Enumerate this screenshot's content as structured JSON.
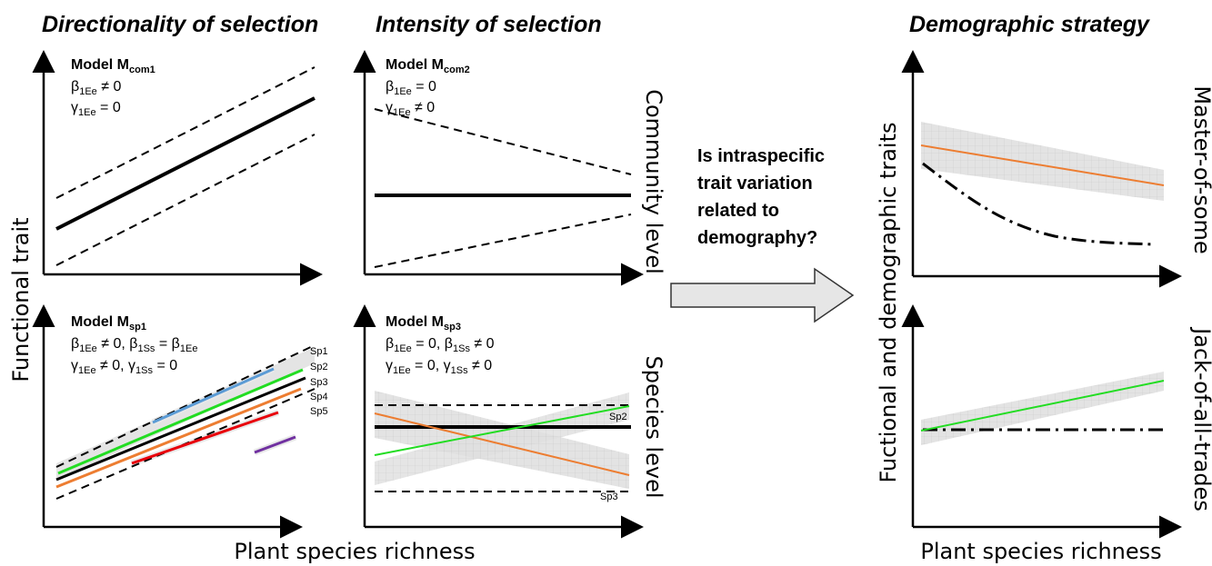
{
  "headings": {
    "directionality": "Directionality of selection",
    "intensity": "Intensity of selection",
    "demographic": "Demographic strategy"
  },
  "axes": {
    "y_left": "Functional trait",
    "x_left": "Plant species richness",
    "y_right": "Fuctional and demographic traits",
    "x_right": "Plant species richness"
  },
  "row_labels": {
    "community": "Community level",
    "species": "Species level",
    "master": "Master-of-some",
    "jack": "Jack-of-all-trades"
  },
  "question": [
    "Is intraspecific",
    "trait variation",
    "related to",
    "demography?"
  ],
  "panels": {
    "mcom1": {
      "model": "Model M",
      "sub": "com1",
      "lines": [
        [
          "β",
          "1Ee",
          " ≠ 0"
        ],
        [
          "γ",
          "1Ee",
          " = 0"
        ]
      ]
    },
    "mcom2": {
      "model": "Model M",
      "sub": "com2",
      "lines": [
        [
          "β",
          "1Ee",
          " = 0"
        ],
        [
          "γ",
          "1Ee",
          " ≠ 0"
        ]
      ]
    },
    "msp1": {
      "model": "Model M",
      "sub": "sp1",
      "line1": [
        "β",
        "1Ee",
        " ≠ 0,  β",
        "1Ss",
        " = β",
        "1Ee",
        ""
      ],
      "line2": [
        "γ",
        "1Ee",
        " ≠ 0,  γ",
        "1Ss",
        " = 0"
      ]
    },
    "msp3": {
      "model": "Model M",
      "sub": "sp3",
      "line1": [
        "β",
        "1Ee",
        " = 0,  β",
        "1Ss",
        " ≠ 0"
      ],
      "line2": [
        "γ",
        "1Ee",
        " = 0,  γ",
        "1Ss",
        " ≠ 0"
      ]
    }
  },
  "species_labels": {
    "sp1": "Sp1",
    "sp2": "Sp2",
    "sp3": "Sp3",
    "sp4": "Sp4",
    "sp5": "Sp5",
    "sp2b": "Sp2",
    "sp3b": "Sp3"
  },
  "colors": {
    "orange": "#ed7d31",
    "green": "#22dd22",
    "blue": "#5b9bd5",
    "red": "#e8000b",
    "purple": "#7030a0",
    "band": "#d9d9d9",
    "arrow_fill": "#e6e6e6"
  }
}
